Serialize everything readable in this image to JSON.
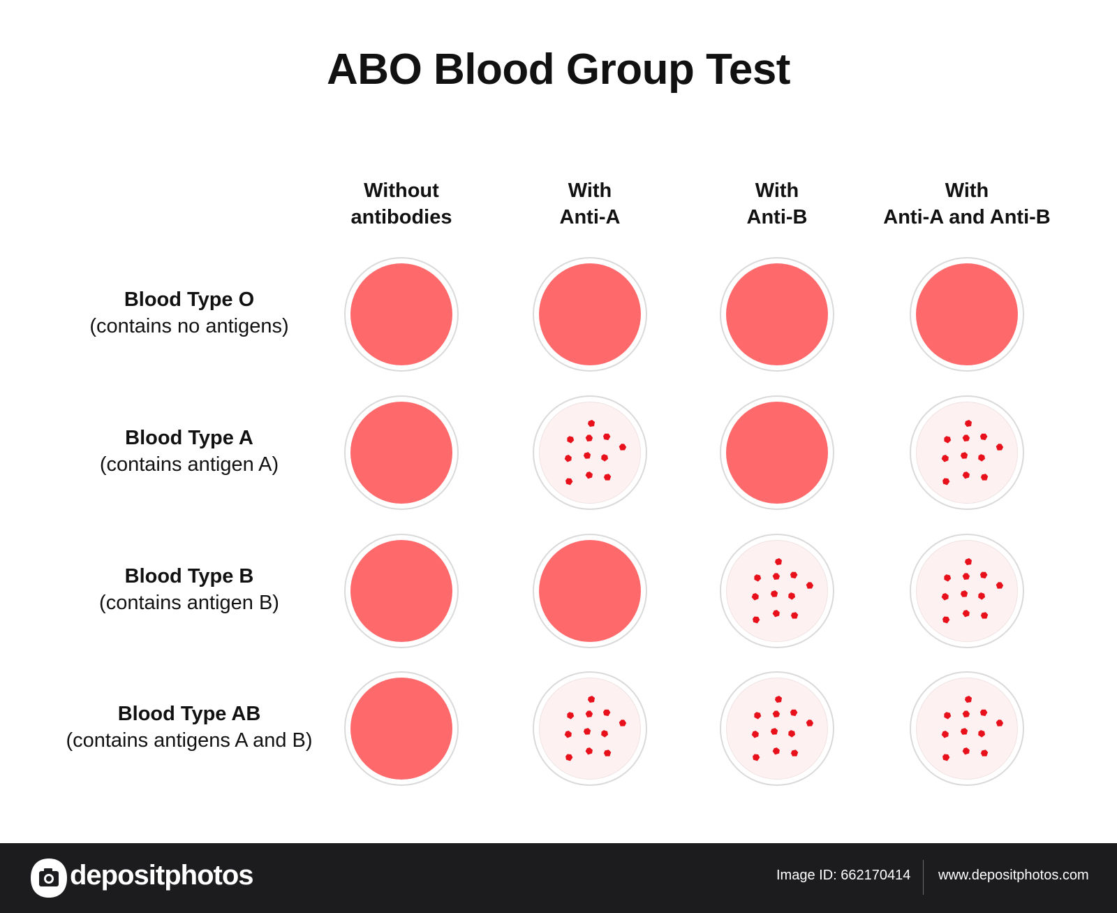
{
  "title": "ABO Blood Group Test",
  "colors": {
    "blood": "#fe6a6c",
    "clump_background": "#fdf1f1",
    "clump": "#e8101a",
    "dish_rim": "#d9d9d9",
    "footer_background": "#1c1c1e"
  },
  "columns": [
    {
      "line1": "Without",
      "line2": "antibodies"
    },
    {
      "line1": "With",
      "line2": "Anti-A"
    },
    {
      "line1": "With",
      "line2": "Anti-B"
    },
    {
      "line1": "With",
      "line2": "Anti-A and Anti-B"
    }
  ],
  "rows": [
    {
      "name": "Blood Type O",
      "description": "(contains no antigens)",
      "agglutination": [
        false,
        false,
        false,
        false
      ]
    },
    {
      "name": "Blood Type A",
      "description": "(contains antigen A)",
      "agglutination": [
        false,
        true,
        false,
        true
      ]
    },
    {
      "name": "Blood Type B",
      "description": "(contains antigen B)",
      "agglutination": [
        false,
        false,
        true,
        true
      ]
    },
    {
      "name": "Blood Type AB",
      "description": "(contains antigens A and B)",
      "agglutination": [
        false,
        true,
        true,
        true
      ]
    }
  ],
  "footer": {
    "brand": "depositphotos",
    "image_id": "Image ID: 662170414",
    "website": "www.depositphotos.com",
    "logo_icon": "camera-icon"
  }
}
